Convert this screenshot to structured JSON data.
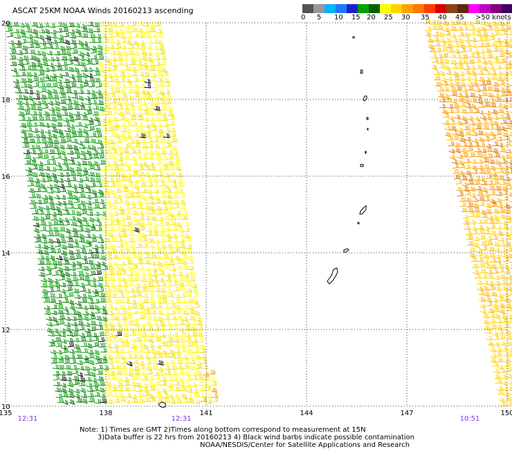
{
  "title": "ASCAT 25KM NOAA Winds 20160213 ascending",
  "colorbar": {
    "colors": [
      "#555555",
      "#999999",
      "#00b4ff",
      "#1e78ff",
      "#2020c8",
      "#00a000",
      "#006400",
      "#ffff00",
      "#ffd200",
      "#ffa000",
      "#ff7800",
      "#ff3c00",
      "#dc0000",
      "#8b4513",
      "#5a2a0a",
      "#ff00ff",
      "#c000c0",
      "#800080",
      "#400060"
    ],
    "labels": [
      "0",
      "5",
      "10",
      "15",
      "20",
      "25",
      "30",
      "35",
      "40",
      "45",
      ">50 knots"
    ]
  },
  "map": {
    "lat_range": [
      10,
      20
    ],
    "lon_range": [
      135,
      150
    ],
    "lat_ticks": [
      "10",
      "12",
      "14",
      "16",
      "18",
      "20"
    ],
    "lon_ticks": [
      "135",
      "138",
      "141",
      "144",
      "147",
      "150"
    ],
    "times": [
      "12:31",
      "12:31",
      "10:51"
    ],
    "grid": "dotted"
  },
  "notes": [
    "Note: 1) Times are GMT 2)Times along bottom correspond to measurement at 15N",
    "3)Data buffer is 22 hrs from 20160213 4) Black wind barbs indicate possible contamination",
    "NOAA/NESDIS/Center for Satellite Applications and Research"
  ]
}
